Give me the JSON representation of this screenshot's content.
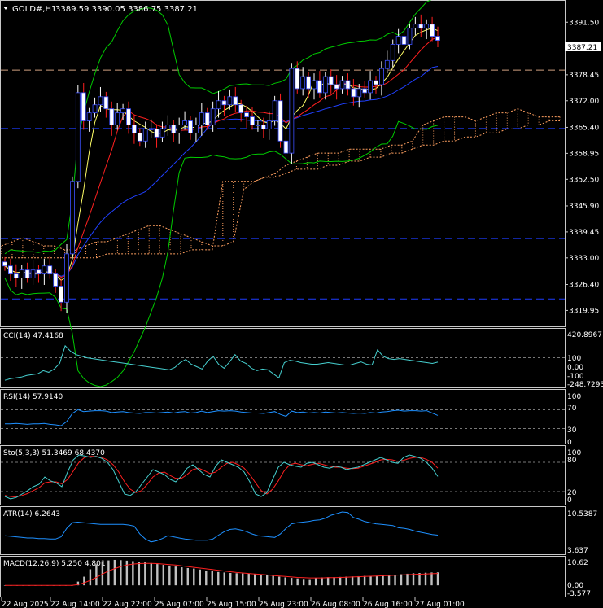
{
  "header": {
    "symbol_timeframe": "GOLD#,H1",
    "ohlc": "3389.59 3390.05 3386.75 3387.21"
  },
  "colors": {
    "background": "#000000",
    "frame": "#c8c8c8",
    "text": "#ffffff",
    "bull_candle": "#ffffff",
    "bear_candle": "#ff2020",
    "bull_body_fill": "#000000",
    "bear_body_fill": "#ffffff",
    "candle_outline": "#3c50ff",
    "bollinger": "#00cc00",
    "ma_fast": "#ffff66",
    "ma_mid": "#ff2020",
    "ma_slow": "#2040ff",
    "ichimoku_cloud": "#ffa060",
    "level_line": "#1e3cff",
    "level_dash": "#d0a080",
    "indicator_line": "#1e90ff",
    "cci_line": "#46d0d0",
    "stoch_main": "#46d0d0",
    "stoch_signal": "#ff2020",
    "macd_hist": "#c0c0c0",
    "macd_signal": "#ff2020",
    "current_price_box": "#ffffff"
  },
  "price_axis": {
    "ticks": [
      "3391.50",
      "3384.90",
      "3378.45",
      "3372.00",
      "3365.40",
      "3358.95",
      "3352.50",
      "3345.90",
      "3339.45",
      "3333.00",
      "3326.40",
      "3319.95"
    ],
    "current_price": "3387.21"
  },
  "time_axis": {
    "labels": [
      "22 Aug 2025",
      "22 Aug 14:00",
      "22 Aug 22:00",
      "25 Aug 07:00",
      "25 Aug 15:00",
      "25 Aug 23:00",
      "26 Aug 08:00",
      "26 Aug 16:00",
      "27 Aug 01:00"
    ]
  },
  "chart_data": [
    {
      "type": "candlestick",
      "title": "GOLD#,H1",
      "ylim": [
        3316.6,
        3396.2
      ],
      "horizontal_levels": [
        3379.6,
        3365.1,
        3337.8,
        3322.8
      ],
      "candles_close": [
        3331,
        3329,
        3328,
        3330,
        3328,
        3330,
        3329,
        3331,
        3329,
        3326,
        3322,
        3334,
        3352,
        3374,
        3367,
        3369,
        3371,
        3373,
        3370,
        3366,
        3369,
        3370,
        3366,
        3364,
        3362,
        3365,
        3365,
        3363,
        3365,
        3366,
        3364,
        3366,
        3367,
        3364,
        3366,
        3369,
        3366,
        3370,
        3372,
        3371,
        3373,
        3371,
        3369,
        3368,
        3366,
        3366,
        3365,
        3367,
        3372,
        3362,
        3359,
        3380,
        3375,
        3378,
        3375,
        3377,
        3374,
        3378,
        3376,
        3375,
        3377,
        3375,
        3373,
        3375,
        3374,
        3377,
        3376,
        3380,
        3382,
        3386,
        3388,
        3386,
        3390,
        3391,
        3390,
        3391,
        3388,
        3387
      ],
      "ichimoku_span_a": [
        3336,
        3337,
        3338,
        3337,
        3336,
        3336,
        3335,
        3335,
        3336,
        3337,
        3337,
        3338,
        3339,
        3340,
        3341,
        3341,
        3340,
        3339,
        3338,
        3337,
        3336,
        3336,
        3337,
        3350,
        3352,
        3353,
        3354,
        3356,
        3357,
        3358,
        3359,
        3359,
        3359,
        3360,
        3360,
        3360,
        3360,
        3361,
        3361,
        3362,
        3366,
        3367,
        3368,
        3368,
        3368,
        3367,
        3368,
        3369,
        3369,
        3370,
        3369,
        3368,
        3368,
        3368
      ],
      "ichimoku_span_b": [
        3333,
        3333,
        3333,
        3333,
        3333,
        3333,
        3333,
        3333,
        3333,
        3333,
        3334,
        3334,
        3334,
        3334,
        3334,
        3334,
        3334,
        3334,
        3335,
        3335,
        3335,
        3352,
        3352,
        3352,
        3352,
        3353,
        3353,
        3354,
        3355,
        3355,
        3355,
        3356,
        3356,
        3357,
        3357,
        3358,
        3358,
        3359,
        3359,
        3360,
        3361,
        3361,
        3362,
        3362,
        3363,
        3363,
        3364,
        3364,
        3365,
        3365,
        3366,
        3366,
        3367,
        3367
      ]
    },
    {
      "type": "line",
      "title": "CCI(14) 47.4168",
      "y_ticks": [
        "420.8967",
        "100",
        "0.00",
        "-100",
        "-248.7293"
      ],
      "levels": [
        100,
        -100
      ],
      "ylim": [
        -248.7293,
        420.8967
      ],
      "series": [
        {
          "name": "CCI(14)",
          "values": [
            -180,
            -160,
            -150,
            -140,
            -120,
            -110,
            -100,
            -60,
            -80,
            -40,
            30,
            250,
            180,
            140,
            120,
            100,
            90,
            80,
            70,
            60,
            50,
            40,
            30,
            20,
            10,
            0,
            -10,
            -20,
            -30,
            -40,
            -50,
            -20,
            40,
            80,
            20,
            -10,
            -40,
            60,
            120,
            20,
            -30,
            50,
            140,
            60,
            30,
            -30,
            -60,
            -40,
            -50,
            -100,
            -150,
            40,
            70,
            60,
            40,
            30,
            20,
            20,
            30,
            40,
            30,
            20,
            10,
            10,
            30,
            50,
            20,
            10,
            200,
            120,
            90,
            80,
            90,
            80,
            70,
            60,
            50,
            40,
            30,
            47
          ]
        }
      ]
    },
    {
      "type": "line",
      "title": "RSI(14) 57.9140",
      "y_ticks": [
        "100",
        "70",
        "30",
        "0"
      ],
      "levels": [
        70,
        30
      ],
      "ylim": [
        0,
        100
      ],
      "series": [
        {
          "name": "RSI(14)",
          "values": [
            40,
            40,
            41,
            40,
            39,
            40,
            40,
            41,
            39,
            38,
            36,
            45,
            62,
            70,
            66,
            67,
            68,
            68,
            67,
            64,
            65,
            66,
            64,
            63,
            62,
            64,
            64,
            63,
            64,
            65,
            63,
            65,
            66,
            63,
            64,
            67,
            64,
            66,
            68,
            67,
            68,
            67,
            65,
            64,
            63,
            63,
            62,
            64,
            66,
            60,
            56,
            67,
            64,
            65,
            63,
            64,
            63,
            65,
            64,
            63,
            64,
            63,
            62,
            63,
            62,
            64,
            63,
            65,
            66,
            68,
            69,
            67,
            68,
            68,
            67,
            68,
            63,
            58
          ]
        }
      ]
    },
    {
      "type": "line",
      "title": "Sto(5,3,3) 51.3469 68.4370",
      "y_ticks": [
        "100",
        "80",
        "20",
        "0"
      ],
      "levels": [
        80,
        20
      ],
      "ylim": [
        0,
        100
      ],
      "series": [
        {
          "name": "%K",
          "values": [
            10,
            5,
            8,
            15,
            22,
            30,
            35,
            50,
            42,
            38,
            30,
            60,
            85,
            95,
            93,
            90,
            92,
            88,
            80,
            65,
            40,
            15,
            12,
            20,
            35,
            50,
            65,
            60,
            55,
            45,
            40,
            52,
            68,
            75,
            65,
            55,
            50,
            72,
            85,
            80,
            75,
            70,
            60,
            40,
            15,
            10,
            18,
            45,
            70,
            80,
            75,
            72,
            70,
            78,
            80,
            75,
            70,
            68,
            72,
            70,
            65,
            68,
            70,
            75,
            80,
            85,
            90,
            85,
            80,
            78,
            90,
            95,
            92,
            88,
            80,
            68,
            51
          ]
        },
        {
          "name": "%D",
          "values": [
            12,
            10,
            9,
            12,
            16,
            22,
            28,
            38,
            40,
            40,
            36,
            45,
            62,
            80,
            90,
            92,
            92,
            90,
            85,
            75,
            60,
            40,
            25,
            18,
            22,
            35,
            50,
            58,
            60,
            53,
            47,
            47,
            55,
            65,
            68,
            63,
            57,
            60,
            70,
            78,
            80,
            75,
            68,
            55,
            38,
            22,
            15,
            25,
            42,
            62,
            75,
            78,
            75,
            73,
            76,
            78,
            75,
            72,
            70,
            70,
            68,
            67,
            68,
            72,
            76,
            80,
            85,
            86,
            85,
            82,
            84,
            88,
            90,
            90,
            86,
            80,
            68
          ]
        }
      ]
    },
    {
      "type": "line",
      "title": "ATR(14) 6.2643",
      "y_ticks": [
        "10.5387",
        "3.637"
      ],
      "ylim": [
        3.637,
        10.5387
      ],
      "series": [
        {
          "name": "ATR(14)",
          "values": [
            6.2,
            6.1,
            6.0,
            5.9,
            5.8,
            5.8,
            5.7,
            5.7,
            5.6,
            5.6,
            6.0,
            7.5,
            8.5,
            8.6,
            8.5,
            8.4,
            8.3,
            8.2,
            8.2,
            8.2,
            8.2,
            8.2,
            8.1,
            7.9,
            6.5,
            5.6,
            5.1,
            5.3,
            5.7,
            6.2,
            6.0,
            5.8,
            5.6,
            5.5,
            5.4,
            5.4,
            5.4,
            5.6,
            6.3,
            6.9,
            7.3,
            7.4,
            7.2,
            6.9,
            6.5,
            6.2,
            6.1,
            6.0,
            5.9,
            6.5,
            7.5,
            8.3,
            8.5,
            8.6,
            8.7,
            8.9,
            9.0,
            9.3,
            9.8,
            10.1,
            10.4,
            10.3,
            9.4,
            9.1,
            8.7,
            8.5,
            8.3,
            8.2,
            8.1,
            8.0,
            7.6,
            7.5,
            7.3,
            7.0,
            6.8,
            6.6,
            6.4,
            6.3
          ]
        }
      ]
    },
    {
      "type": "bar",
      "title": "MACD(12,26,9) 5.250 4.801",
      "y_ticks": [
        "10.62",
        "0.00",
        "-3.577"
      ],
      "ylim": [
        -3.577,
        10.62
      ],
      "series": [
        {
          "name": "MACD",
          "values": [
            0,
            0,
            0,
            0,
            0,
            0,
            0,
            0,
            0,
            0,
            0,
            0,
            1.5,
            3.5,
            6.5,
            8.5,
            9.5,
            10.1,
            10.3,
            10.2,
            10,
            9.8,
            9.5,
            9.3,
            9,
            8.6,
            8.3,
            8,
            7.6,
            7.3,
            7,
            6.8,
            6.4,
            6,
            5.7,
            5.4,
            5.2,
            5,
            4.9,
            4.8,
            4.7,
            4.5,
            4.3,
            4.1,
            3.8,
            3.5,
            3.2,
            3,
            2.8,
            2.6,
            2.5,
            3,
            3.2,
            3.3,
            3.3,
            3.4,
            3.5,
            3.6,
            3.7,
            3.8,
            3.8,
            3.9,
            4,
            4.1,
            4.3,
            4.5,
            4.7,
            4.9,
            5,
            5.1,
            5.2,
            5.25
          ]
        },
        {
          "name": "Signal",
          "values": [
            0,
            0,
            0,
            0,
            0,
            0,
            0,
            0,
            0,
            0,
            0,
            0,
            0.3,
            1,
            2,
            3.2,
            4.6,
            5.8,
            6.8,
            7.6,
            8.2,
            8.6,
            8.8,
            8.9,
            8.9,
            8.8,
            8.6,
            8.4,
            8.2,
            7.9,
            7.6,
            7.3,
            7,
            6.7,
            6.4,
            6.1,
            5.8,
            5.5,
            5.2,
            5,
            4.8,
            4.6,
            4.4,
            4.2,
            4,
            3.8,
            3.6,
            3.4,
            3.2,
            3.1,
            3,
            3,
            3,
            3.1,
            3.1,
            3.2,
            3.3,
            3.4,
            3.5,
            3.6,
            3.7,
            3.8,
            3.9,
            4,
            4.1,
            4.2,
            4.3,
            4.4,
            4.5,
            4.6,
            4.7,
            4.801
          ]
        }
      ]
    }
  ]
}
